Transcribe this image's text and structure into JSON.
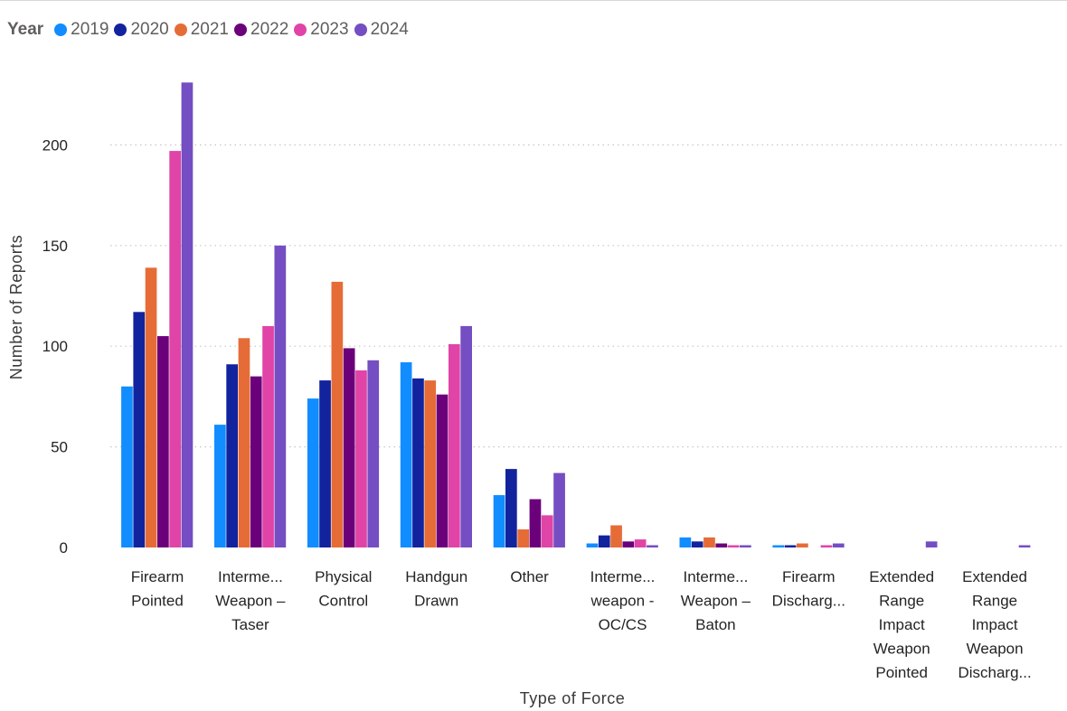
{
  "chart_data": {
    "type": "bar",
    "legend_title": "Year",
    "legend_position": "top-left",
    "xlabel": "Type of Force",
    "ylabel": "Number of Reports",
    "ylim": [
      0,
      232
    ],
    "yticks": [
      0,
      50,
      100,
      150,
      200
    ],
    "grid": true,
    "categories": [
      [
        "Firearm",
        "Pointed"
      ],
      [
        "Interme...",
        "Weapon –",
        "Taser"
      ],
      [
        "Physical",
        "Control"
      ],
      [
        "Handgun",
        "Drawn"
      ],
      [
        "Other"
      ],
      [
        "Interme...",
        "weapon -",
        "OC/CS"
      ],
      [
        "Interme...",
        "Weapon –",
        "Baton"
      ],
      [
        "Firearm",
        "Discharg..."
      ],
      [
        "Extended",
        "Range",
        "Impact",
        "Weapon",
        "Pointed"
      ],
      [
        "Extended",
        "Range",
        "Impact",
        "Weapon",
        "Discharg..."
      ]
    ],
    "series": [
      {
        "name": "2019",
        "color": "#118DFF",
        "values": [
          80,
          61,
          74,
          92,
          26,
          2,
          5,
          1,
          0,
          0
        ]
      },
      {
        "name": "2020",
        "color": "#12239E",
        "values": [
          117,
          91,
          83,
          84,
          39,
          6,
          3,
          1,
          0,
          0
        ]
      },
      {
        "name": "2021",
        "color": "#E66C37",
        "values": [
          139,
          104,
          132,
          83,
          9,
          11,
          5,
          2,
          0,
          0
        ]
      },
      {
        "name": "2022",
        "color": "#6B007B",
        "values": [
          105,
          85,
          99,
          76,
          24,
          3,
          2,
          0,
          0,
          0
        ]
      },
      {
        "name": "2023",
        "color": "#E044A7",
        "values": [
          197,
          110,
          88,
          101,
          16,
          4,
          1,
          1,
          0,
          0
        ]
      },
      {
        "name": "2024",
        "color": "#744EC2",
        "values": [
          231,
          150,
          93,
          110,
          37,
          1,
          1,
          2,
          3,
          1
        ]
      }
    ]
  }
}
